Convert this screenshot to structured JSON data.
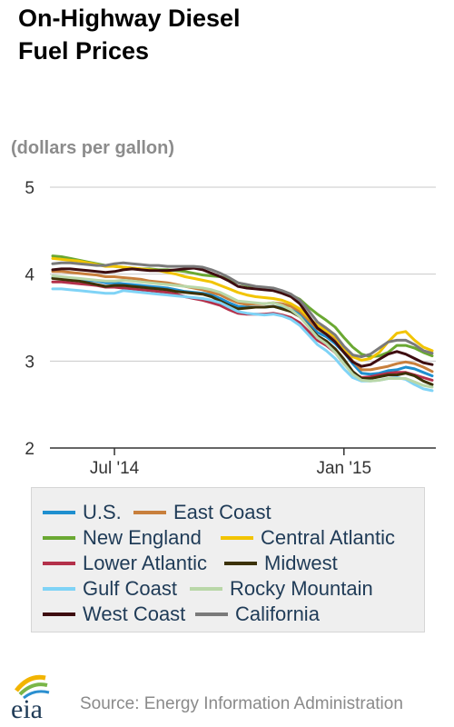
{
  "title_lines": [
    "On-Highway Diesel",
    "Fuel Prices"
  ],
  "units": "(dollars per gallon)",
  "source": "Source: Energy Information Administration",
  "logo_text": "eia",
  "chart_data": {
    "type": "line",
    "title": "On-Highway Diesel Fuel Prices",
    "ylabel": "(dollars per gallon)",
    "ylim": [
      2,
      5
    ],
    "yticks": [
      2,
      3,
      4,
      5
    ],
    "xticks": [
      {
        "label": "Jul '14",
        "index": 7
      },
      {
        "label": "Jan '15",
        "index": 33
      }
    ],
    "grid": true,
    "legend_position": "bottom",
    "x_count": 44,
    "series": [
      {
        "name": "U.S.",
        "color": "#1f8fcf",
        "values": [
          3.96,
          3.96,
          3.95,
          3.94,
          3.93,
          3.92,
          3.9,
          3.9,
          3.89,
          3.88,
          3.87,
          3.86,
          3.85,
          3.84,
          3.82,
          3.8,
          3.79,
          3.78,
          3.76,
          3.72,
          3.67,
          3.63,
          3.62,
          3.62,
          3.62,
          3.63,
          3.61,
          3.59,
          3.54,
          3.43,
          3.33,
          3.28,
          3.2,
          3.1,
          2.97,
          2.86,
          2.85,
          2.86,
          2.89,
          2.9,
          2.93,
          2.91,
          2.87,
          2.83
        ]
      },
      {
        "name": "East Coast",
        "color": "#c87f3c",
        "values": [
          4.03,
          4.03,
          4.02,
          4.01,
          4.0,
          3.99,
          3.97,
          3.97,
          3.96,
          3.95,
          3.94,
          3.92,
          3.91,
          3.9,
          3.88,
          3.86,
          3.84,
          3.82,
          3.79,
          3.76,
          3.71,
          3.67,
          3.65,
          3.66,
          3.66,
          3.67,
          3.66,
          3.63,
          3.57,
          3.47,
          3.37,
          3.31,
          3.25,
          3.12,
          3.0,
          2.9,
          2.9,
          2.92,
          2.94,
          2.97,
          2.99,
          2.97,
          2.93,
          2.88
        ]
      },
      {
        "name": "New England",
        "color": "#6aa832",
        "values": [
          4.21,
          4.2,
          4.18,
          4.16,
          4.14,
          4.12,
          4.1,
          4.09,
          4.08,
          4.07,
          4.06,
          4.06,
          4.05,
          4.05,
          4.04,
          4.03,
          4.01,
          3.99,
          3.98,
          3.97,
          3.94,
          3.9,
          3.87,
          3.85,
          3.84,
          3.82,
          3.8,
          3.76,
          3.71,
          3.62,
          3.54,
          3.47,
          3.39,
          3.27,
          3.16,
          3.08,
          3.05,
          3.06,
          3.1,
          3.18,
          3.18,
          3.15,
          3.1,
          3.06
        ]
      },
      {
        "name": "Central Atlantic",
        "color": "#f2c400",
        "values": [
          4.18,
          4.17,
          4.16,
          4.15,
          4.13,
          4.11,
          4.09,
          4.09,
          4.08,
          4.07,
          4.06,
          4.05,
          4.04,
          4.02,
          4.0,
          3.97,
          3.95,
          3.93,
          3.91,
          3.87,
          3.83,
          3.79,
          3.76,
          3.74,
          3.73,
          3.72,
          3.7,
          3.66,
          3.6,
          3.5,
          3.41,
          3.35,
          3.28,
          3.15,
          3.05,
          3.01,
          3.03,
          3.1,
          3.22,
          3.32,
          3.34,
          3.24,
          3.16,
          3.12
        ]
      },
      {
        "name": "Lower Atlantic",
        "color": "#b3304a",
        "values": [
          3.91,
          3.91,
          3.9,
          3.89,
          3.88,
          3.87,
          3.85,
          3.85,
          3.84,
          3.83,
          3.82,
          3.81,
          3.8,
          3.79,
          3.77,
          3.74,
          3.72,
          3.7,
          3.67,
          3.64,
          3.59,
          3.55,
          3.54,
          3.54,
          3.54,
          3.55,
          3.53,
          3.5,
          3.44,
          3.34,
          3.24,
          3.18,
          3.1,
          2.97,
          2.86,
          2.81,
          2.82,
          2.84,
          2.86,
          2.87,
          2.87,
          2.84,
          2.81,
          2.78
        ]
      },
      {
        "name": "Midwest",
        "color": "#3c3207",
        "values": [
          3.95,
          3.94,
          3.93,
          3.92,
          3.9,
          3.88,
          3.86,
          3.87,
          3.87,
          3.86,
          3.85,
          3.84,
          3.83,
          3.82,
          3.8,
          3.79,
          3.78,
          3.77,
          3.74,
          3.69,
          3.64,
          3.6,
          3.61,
          3.62,
          3.62,
          3.63,
          3.6,
          3.57,
          3.51,
          3.4,
          3.29,
          3.23,
          3.14,
          3.02,
          2.88,
          2.8,
          2.8,
          2.82,
          2.84,
          2.84,
          2.86,
          2.83,
          2.77,
          2.73
        ]
      },
      {
        "name": "Gulf Coast",
        "color": "#7fd3f6",
        "values": [
          3.83,
          3.83,
          3.82,
          3.81,
          3.8,
          3.79,
          3.78,
          3.78,
          3.81,
          3.8,
          3.79,
          3.78,
          3.77,
          3.76,
          3.75,
          3.74,
          3.73,
          3.72,
          3.7,
          3.67,
          3.62,
          3.57,
          3.55,
          3.54,
          3.53,
          3.54,
          3.52,
          3.48,
          3.41,
          3.3,
          3.19,
          3.12,
          3.03,
          2.91,
          2.81,
          2.77,
          2.77,
          2.78,
          2.8,
          2.81,
          2.79,
          2.73,
          2.68,
          2.66
        ]
      },
      {
        "name": "Rocky Mountain",
        "color": "#b9d7a8",
        "values": [
          3.98,
          3.97,
          3.96,
          3.95,
          3.94,
          3.93,
          3.92,
          3.92,
          3.93,
          3.92,
          3.91,
          3.9,
          3.89,
          3.88,
          3.87,
          3.86,
          3.85,
          3.84,
          3.82,
          3.79,
          3.74,
          3.69,
          3.68,
          3.67,
          3.66,
          3.67,
          3.64,
          3.59,
          3.51,
          3.39,
          3.27,
          3.2,
          3.1,
          2.97,
          2.85,
          2.78,
          2.77,
          2.78,
          2.8,
          2.8,
          2.8,
          2.76,
          2.72,
          2.7
        ]
      },
      {
        "name": "West Coast",
        "color": "#3e0d10",
        "values": [
          4.05,
          4.06,
          4.06,
          4.05,
          4.04,
          4.03,
          4.02,
          4.03,
          4.05,
          4.06,
          4.05,
          4.04,
          4.04,
          4.04,
          4.05,
          4.06,
          4.07,
          4.05,
          4.01,
          3.97,
          3.92,
          3.86,
          3.84,
          3.83,
          3.82,
          3.81,
          3.78,
          3.74,
          3.66,
          3.52,
          3.38,
          3.31,
          3.22,
          3.1,
          2.99,
          2.94,
          2.96,
          3.02,
          3.08,
          3.11,
          3.08,
          3.03,
          2.98,
          2.96
        ]
      },
      {
        "name": "California",
        "color": "#7a7a7a",
        "values": [
          4.12,
          4.13,
          4.13,
          4.12,
          4.11,
          4.1,
          4.1,
          4.12,
          4.13,
          4.12,
          4.11,
          4.1,
          4.1,
          4.09,
          4.09,
          4.09,
          4.09,
          4.08,
          4.05,
          4.01,
          3.96,
          3.9,
          3.88,
          3.86,
          3.85,
          3.84,
          3.81,
          3.77,
          3.7,
          3.58,
          3.45,
          3.38,
          3.3,
          3.17,
          3.07,
          3.05,
          3.08,
          3.15,
          3.22,
          3.24,
          3.24,
          3.19,
          3.12,
          3.09
        ]
      }
    ]
  }
}
